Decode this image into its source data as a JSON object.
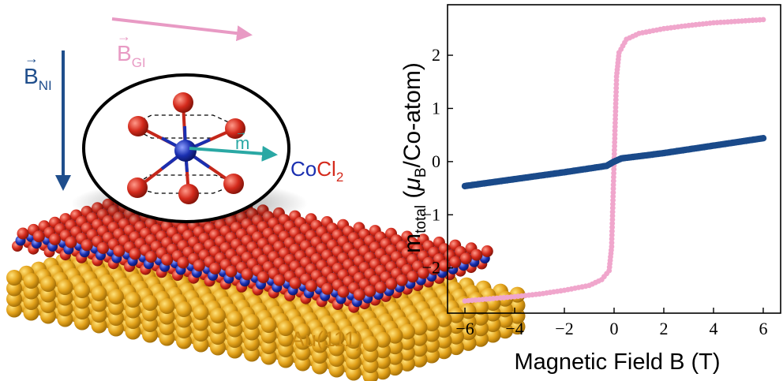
{
  "schematic": {
    "label_b_ni_main": "B",
    "label_b_ni_sub": "NI",
    "label_b_gi_main": "B",
    "label_b_gi_sub": "GI",
    "label_m": "m",
    "label_cocl2_co": "Co",
    "label_cocl2_cl": "Cl",
    "label_cocl2_sub": "2",
    "label_substrate": "Au(111)",
    "colors": {
      "gold": "#e3a21a",
      "chlorine": "#d42a1c",
      "cobalt": "#1a2fb0",
      "b_ni_arrow": "#1f4e8c",
      "b_gi_arrow": "#e89ac4",
      "m_arrow": "#2aa8a4",
      "cocl2_co_text": "#1a2fb0",
      "cocl2_cl_text": "#d42a1c",
      "substrate_text": "#c98a12"
    }
  },
  "chart_data": {
    "type": "scatter",
    "title": "",
    "xlabel": "Magnetic Field B (T)",
    "ylabel_main": "m",
    "ylabel_sub": "total",
    "ylabel_rest_open": " (",
    "ylabel_mu": "μ",
    "ylabel_mu_sub": "B",
    "ylabel_rest_close": "/Co-atom)",
    "xlim": [
      -6.7,
      6.7
    ],
    "ylim": [
      -2.85,
      2.95
    ],
    "xticks": [
      -6,
      -4,
      -2,
      0,
      2,
      4,
      6
    ],
    "xtick_labels": [
      "−6",
      "−4",
      "−2",
      "0",
      "2",
      "4",
      "6"
    ],
    "yticks": [
      -2,
      -1,
      0,
      1,
      2
    ],
    "ytick_labels": [
      "−2",
      "−1",
      "0",
      "1",
      "2"
    ],
    "grid": false,
    "legend": "none",
    "series": [
      {
        "color": "#f0a6cc",
        "marker": "dot",
        "points": [
          [
            -6.0,
            -2.62
          ],
          [
            -5.0,
            -2.58
          ],
          [
            -4.0,
            -2.54
          ],
          [
            -3.0,
            -2.49
          ],
          [
            -2.0,
            -2.42
          ],
          [
            -1.0,
            -2.33
          ],
          [
            -0.5,
            -2.22
          ],
          [
            -0.2,
            -2.05
          ],
          [
            -0.1,
            -1.6
          ],
          [
            -0.05,
            -0.8
          ],
          [
            0.0,
            0.0
          ],
          [
            0.05,
            0.8
          ],
          [
            0.1,
            1.6
          ],
          [
            0.2,
            2.05
          ],
          [
            0.5,
            2.3
          ],
          [
            1.0,
            2.41
          ],
          [
            2.0,
            2.5
          ],
          [
            3.0,
            2.56
          ],
          [
            4.0,
            2.61
          ],
          [
            5.0,
            2.64
          ],
          [
            6.0,
            2.67
          ]
        ]
      },
      {
        "color": "#1a4a8a",
        "marker": "dot",
        "points": [
          [
            -6.0,
            -0.46
          ],
          [
            -4.0,
            -0.33
          ],
          [
            -2.0,
            -0.2
          ],
          [
            -1.0,
            -0.13
          ],
          [
            -0.3,
            -0.08
          ],
          [
            0.0,
            0.0
          ],
          [
            0.3,
            0.06
          ],
          [
            1.0,
            0.1
          ],
          [
            2.0,
            0.16
          ],
          [
            4.0,
            0.3
          ],
          [
            6.0,
            0.44
          ]
        ]
      }
    ]
  }
}
